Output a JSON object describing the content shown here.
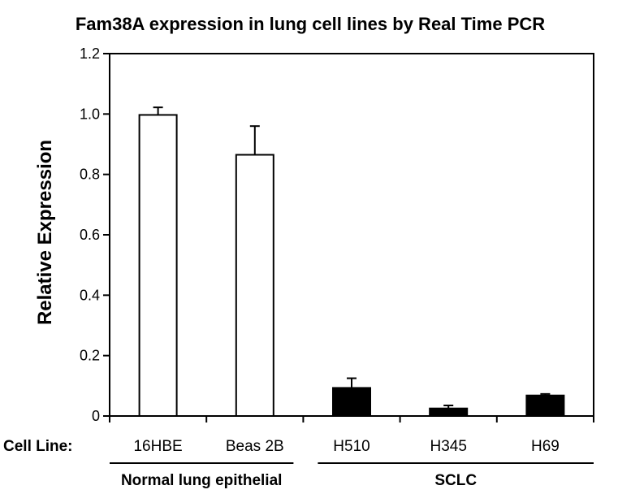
{
  "chart_data": {
    "type": "bar",
    "title": "Fam38A expression in lung cell lines by Real Time PCR",
    "ylabel": "Relative Expression",
    "ylim": [
      0,
      1.2
    ],
    "yticks": [
      "0",
      "0.2",
      "0.4",
      "0.6",
      "0.8",
      "1.0",
      "1.2"
    ],
    "xaxis_prefix": "Cell Line:",
    "categories": [
      "16HBE",
      "Beas 2B",
      "H510",
      "H345",
      "H69"
    ],
    "values": [
      0.997,
      0.865,
      0.093,
      0.025,
      0.068
    ],
    "errors": [
      0.025,
      0.095,
      0.032,
      0.01,
      0.005
    ],
    "bar_colors": [
      "#ffffff",
      "#ffffff",
      "#000000",
      "#000000",
      "#000000"
    ],
    "groups": [
      {
        "label": "Normal lung epithelial",
        "categories": [
          "16HBE",
          "Beas 2B"
        ]
      },
      {
        "label": "SCLC",
        "categories": [
          "H510",
          "H345",
          "H69"
        ]
      }
    ]
  }
}
